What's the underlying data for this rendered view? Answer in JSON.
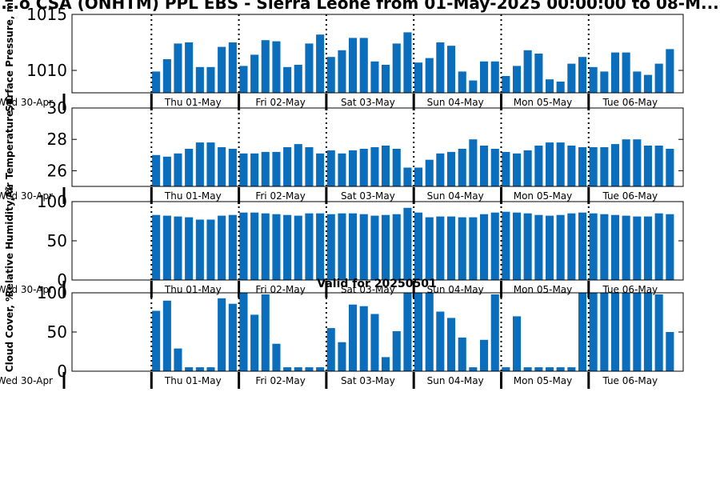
{
  "title": "...o CSA (ONHTM) PPL EBS - Sierra Leone from 01-May-2025 00:00:00 to 08-M...",
  "valid_label": "Valid for 20250501",
  "colors": {
    "bar": "#0a6ebd",
    "axis": "#000000"
  },
  "day_labels": [
    "Wed 30-Apr",
    "Thu 01-May",
    "Fri 02-May",
    "Sat 03-May",
    "Sun 04-May",
    "Mon 05-May",
    "Tue 06-May"
  ],
  "chart_data": [
    {
      "type": "bar",
      "ylabel": "Surface Pressure, mb",
      "ylim": [
        1008,
        1015
      ],
      "yticks": [
        "1010",
        "1015"
      ],
      "ytick_values": [
        1010,
        1015
      ],
      "values": [
        1009.9,
        1011.0,
        1012.4,
        1012.5,
        1010.3,
        1010.3,
        1012.1,
        1012.5,
        1010.4,
        1011.4,
        1012.7,
        1012.6,
        1010.3,
        1010.5,
        1012.4,
        1013.2,
        1011.2,
        1011.8,
        1012.9,
        1012.9,
        1010.8,
        1010.5,
        1012.4,
        1013.4,
        1010.7,
        1011.1,
        1012.5,
        1012.2,
        1009.9,
        1009.1,
        1010.8,
        1010.8,
        1009.5,
        1010.4,
        1011.8,
        1011.5,
        1009.2,
        1009.0,
        1010.6,
        1011.2,
        1010.3,
        1009.9,
        1011.6,
        1011.6,
        1009.9,
        1009.6,
        1010.6,
        1011.9,
        1010.2,
        1010.7,
        1012.6,
        1012.1,
        1009.8,
        1009.4,
        1010.6,
        1011.7
      ]
    },
    {
      "type": "bar",
      "ylabel": "Air Temperature, C",
      "ylim": [
        25,
        30
      ],
      "yticks": [
        "26",
        "28",
        "30"
      ],
      "ytick_values": [
        26,
        28,
        30
      ],
      "values": [
        27.0,
        26.9,
        27.1,
        27.4,
        27.8,
        27.8,
        27.5,
        27.4,
        27.1,
        27.1,
        27.2,
        27.2,
        27.5,
        27.7,
        27.5,
        27.1,
        27.3,
        27.1,
        27.3,
        27.4,
        27.5,
        27.6,
        27.4,
        26.2,
        26.2,
        26.7,
        27.1,
        27.2,
        27.4,
        28.0,
        27.6,
        27.4,
        27.2,
        27.1,
        27.3,
        27.6,
        27.8,
        27.8,
        27.6,
        27.5,
        27.5,
        27.5,
        27.7,
        28.0,
        28.0,
        27.6,
        27.6,
        27.4,
        27.5,
        27.6,
        28.0,
        28.2,
        27.7,
        27.6
      ]
    },
    {
      "type": "bar",
      "ylabel": "Relative Humidity, %",
      "ylim": [
        0,
        100
      ],
      "yticks": [
        "0",
        "50",
        "100"
      ],
      "ytick_values": [
        0,
        50,
        100
      ],
      "values": [
        83,
        82,
        81,
        80,
        77,
        77,
        82,
        83,
        86,
        86,
        85,
        84,
        83,
        82,
        85,
        85,
        84,
        85,
        85,
        84,
        82,
        83,
        84,
        92,
        86,
        80,
        81,
        81,
        80,
        80,
        84,
        86,
        87,
        86,
        85,
        83,
        82,
        83,
        85,
        86,
        85,
        84,
        83,
        82,
        81,
        81,
        85,
        84,
        85,
        84,
        81,
        79,
        80,
        86,
        86
      ]
    },
    {
      "type": "bar",
      "ylabel": "Cloud Cover, %",
      "ylim": [
        0,
        100
      ],
      "yticks": [
        "0",
        "50",
        "100"
      ],
      "ytick_values": [
        0,
        50,
        100
      ],
      "values": [
        77,
        90,
        29,
        5,
        5,
        5,
        93,
        86,
        100,
        72,
        98,
        35,
        5,
        5,
        5,
        5,
        55,
        37,
        85,
        83,
        73,
        18,
        51,
        100,
        100,
        100,
        76,
        68,
        43,
        5,
        40,
        98,
        5,
        70,
        5,
        5,
        5,
        5,
        5,
        100,
        100,
        100,
        100,
        100,
        100,
        100,
        98,
        50,
        95,
        100,
        100,
        100,
        100,
        6,
        2,
        2
      ]
    }
  ]
}
